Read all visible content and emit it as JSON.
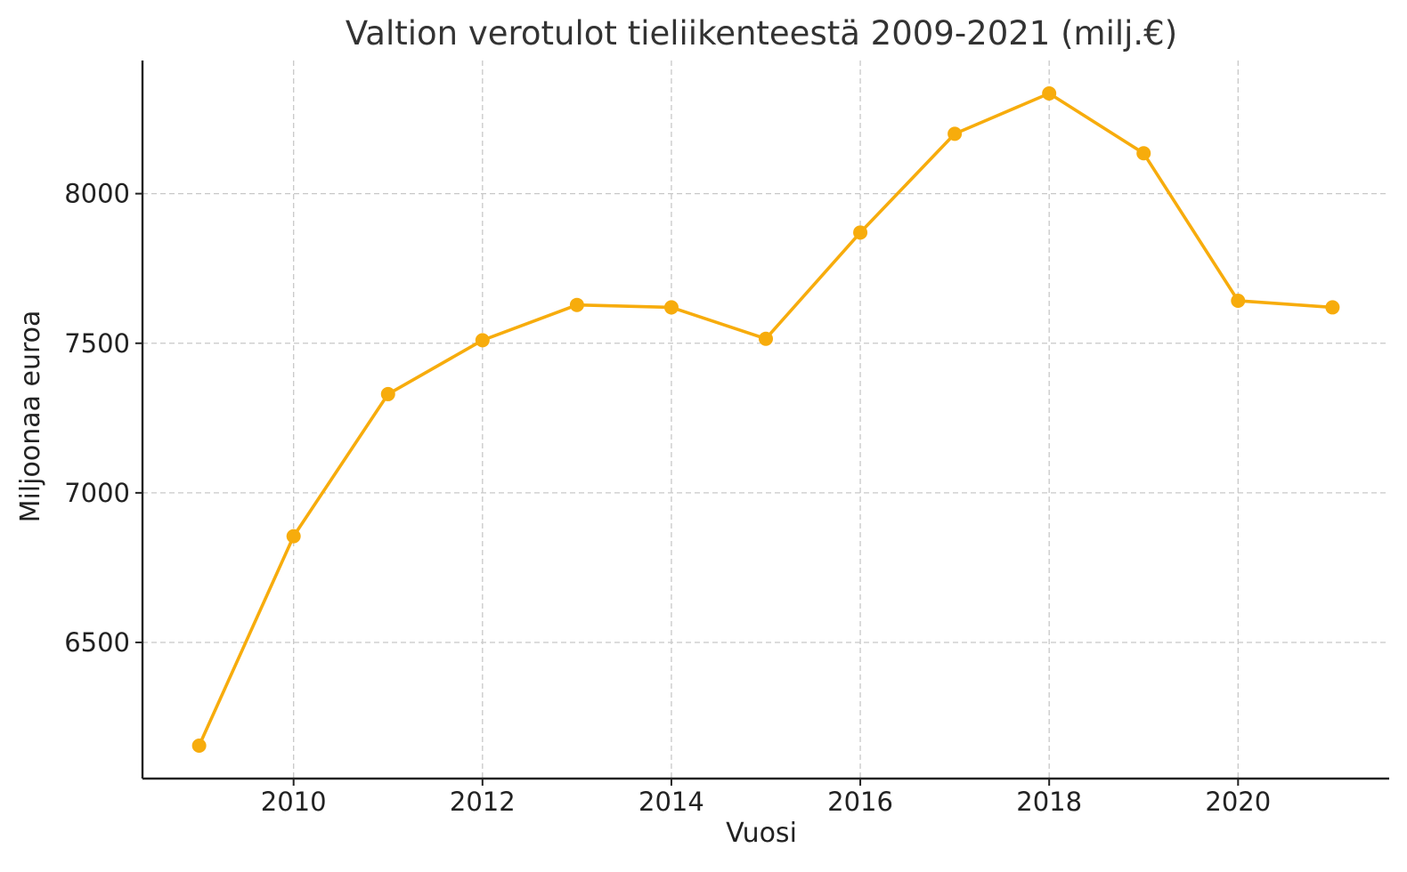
{
  "chart_data": {
    "type": "line",
    "title": "Valtion verotulot tieliikenteestä 2009-2021 (milj.€)",
    "xlabel": "Vuosi",
    "ylabel": "Miljoonaa euroa",
    "x": [
      2009,
      2010,
      2011,
      2012,
      2013,
      2014,
      2015,
      2016,
      2017,
      2018,
      2019,
      2020,
      2021
    ],
    "series": [
      {
        "values": [
          6155,
          6855,
          7330,
          7510,
          7628,
          7620,
          7515,
          7870,
          8200,
          8335,
          8135,
          7642,
          7620
        ],
        "color": "#f7ac0c"
      }
    ],
    "xlim": [
      2008.4,
      2021.6
    ],
    "ylim": [
      6045,
      8445
    ],
    "xticks": [
      2010,
      2012,
      2014,
      2016,
      2018,
      2020
    ],
    "yticks": [
      6500,
      7000,
      7500,
      8000
    ],
    "grid": true,
    "legend": "none"
  }
}
